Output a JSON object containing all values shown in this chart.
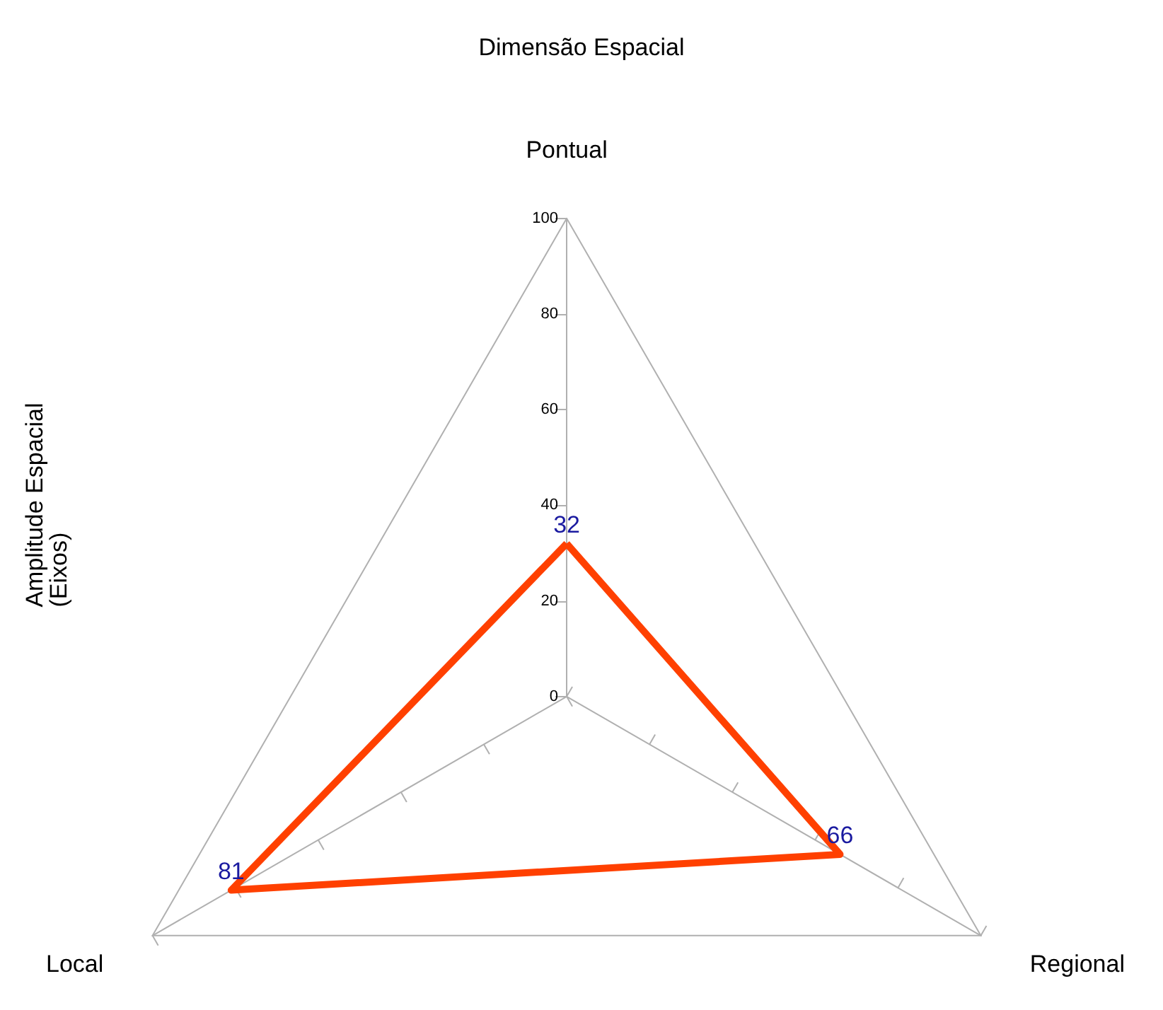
{
  "chart_data": {
    "type": "radar",
    "title": "Dimensão Espacial",
    "ylabel": "Amplitude Espacial\n(Eixos)",
    "categories": [
      "Pontual",
      "Regional",
      "Local"
    ],
    "series": [
      {
        "color": "#ff4000",
        "values": [
          32,
          66,
          81
        ]
      }
    ],
    "ylim": [
      0,
      100
    ],
    "yticks": [
      0,
      20,
      40,
      60,
      80,
      100
    ],
    "data_labels": true,
    "grid": false,
    "marker": "none",
    "line_style": "solid"
  }
}
